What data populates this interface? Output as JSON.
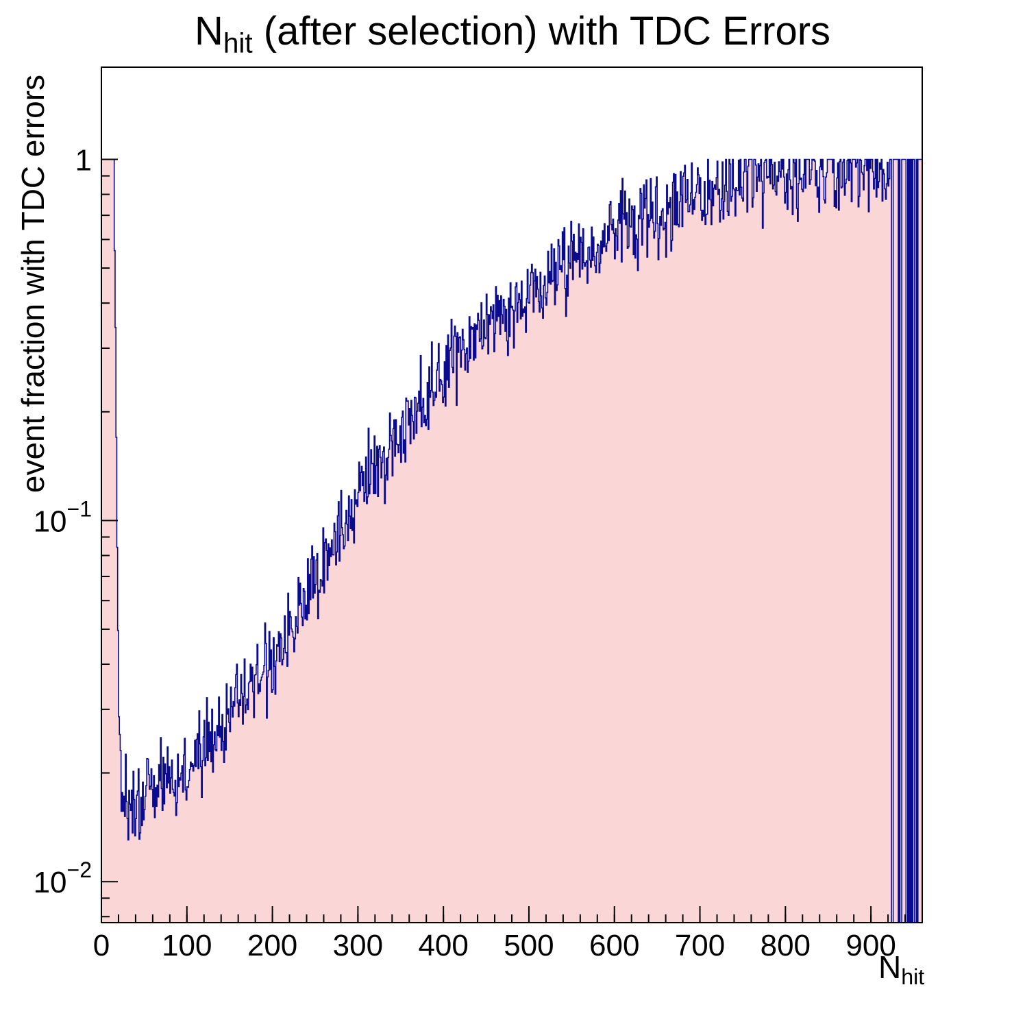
{
  "chart_data": {
    "type": "histogram",
    "title": {
      "prefix": "N",
      "sub": "hit",
      "suffix": " (after selection) with TDC Errors"
    },
    "x_title": {
      "prefix": "N",
      "sub": "hit"
    },
    "y_title": "event fraction with TDC errors",
    "xlim": [
      0,
      960
    ],
    "ylim": [
      0.0077,
      1.8
    ],
    "yscale": "log",
    "grid": false,
    "legend": "none",
    "x_major_ticks": [
      {
        "v": 0,
        "label": "0"
      },
      {
        "v": 100,
        "label": "100"
      },
      {
        "v": 200,
        "label": "200"
      },
      {
        "v": 300,
        "label": "300"
      },
      {
        "v": 400,
        "label": "400"
      },
      {
        "v": 500,
        "label": "500"
      },
      {
        "v": 600,
        "label": "600"
      },
      {
        "v": 700,
        "label": "700"
      },
      {
        "v": 800,
        "label": "800"
      },
      {
        "v": 900,
        "label": "900"
      }
    ],
    "x_minor_step": 20,
    "y_major_ticks": [
      {
        "v": 1,
        "mant": "1",
        "exp": ""
      },
      {
        "v": 0.1,
        "mant": "10",
        "exp": "−1"
      },
      {
        "v": 0.01,
        "mant": "10",
        "exp": "−2"
      }
    ],
    "bin_width": 1,
    "plateau": {
      "x_end": 15,
      "value": 1.0
    },
    "comb": {
      "x_start": 922,
      "drop_prob": 0.45,
      "drop_value": 0.004
    },
    "jitter_dex": 0.055,
    "seed": 20240607,
    "anchors": [
      [
        16,
        0.55
      ],
      [
        18,
        0.12
      ],
      [
        20,
        0.035
      ],
      [
        23,
        0.019
      ],
      [
        27,
        0.0165
      ],
      [
        35,
        0.0162
      ],
      [
        45,
        0.0168
      ],
      [
        55,
        0.0178
      ],
      [
        70,
        0.0185
      ],
      [
        85,
        0.0195
      ],
      [
        100,
        0.021
      ],
      [
        115,
        0.0225
      ],
      [
        130,
        0.0245
      ],
      [
        145,
        0.027
      ],
      [
        160,
        0.03
      ],
      [
        175,
        0.033
      ],
      [
        190,
        0.037
      ],
      [
        205,
        0.043
      ],
      [
        220,
        0.05
      ],
      [
        235,
        0.057
      ],
      [
        250,
        0.068
      ],
      [
        265,
        0.08
      ],
      [
        280,
        0.094
      ],
      [
        300,
        0.115
      ],
      [
        320,
        0.14
      ],
      [
        340,
        0.165
      ],
      [
        360,
        0.19
      ],
      [
        380,
        0.215
      ],
      [
        400,
        0.25
      ],
      [
        420,
        0.285
      ],
      [
        440,
        0.32
      ],
      [
        460,
        0.355
      ],
      [
        480,
        0.39
      ],
      [
        500,
        0.43
      ],
      [
        520,
        0.47
      ],
      [
        540,
        0.51
      ],
      [
        560,
        0.55
      ],
      [
        580,
        0.59
      ],
      [
        600,
        0.63
      ],
      [
        620,
        0.66
      ],
      [
        640,
        0.7
      ],
      [
        660,
        0.73
      ],
      [
        680,
        0.76
      ],
      [
        700,
        0.79
      ],
      [
        720,
        0.84
      ],
      [
        740,
        0.88
      ],
      [
        760,
        0.92
      ],
      [
        780,
        0.94
      ],
      [
        800,
        0.95
      ],
      [
        820,
        0.93
      ],
      [
        840,
        0.9
      ],
      [
        860,
        0.92
      ],
      [
        880,
        0.95
      ],
      [
        900,
        0.94
      ],
      [
        910,
        0.92
      ],
      [
        921,
        0.93
      ]
    ],
    "colors": {
      "fill": "#fbd6d6",
      "line": "#0b0b8f",
      "axis": "#000000",
      "text": "#000000"
    }
  }
}
